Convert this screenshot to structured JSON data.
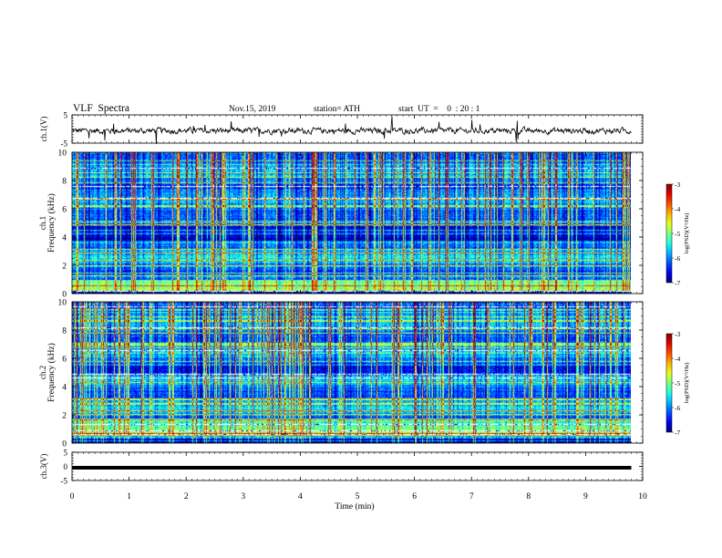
{
  "header": {
    "title": "VLF  Spectra",
    "date": "Nov.15, 2019",
    "station": "station= ATH",
    "start": "start  UT  =    0  : 20 : 1"
  },
  "chart_data": [
    {
      "type": "line",
      "panel": "ch1-waveform",
      "ylabel": "ch.1(V)",
      "ylim": [
        -5,
        5
      ],
      "xlim": [
        0,
        10
      ],
      "yticks": [
        "5",
        "-5"
      ]
    },
    {
      "type": "heatmap",
      "panel": "ch1-spectrogram",
      "ylabel_top": "ch.1",
      "ylabel": "Frequency (kHz)",
      "ylim": [
        0,
        10
      ],
      "xlim": [
        0,
        9.8
      ],
      "yticks": [
        "0",
        "2",
        "4",
        "6",
        "8",
        "10"
      ],
      "colorbar": {
        "label": "log(PSD)(V²/Hz)",
        "ticks": [
          "-3",
          "-4",
          "-5",
          "-6",
          "-7"
        ],
        "range": [
          -7,
          -3
        ]
      }
    },
    {
      "type": "heatmap",
      "panel": "ch2-spectrogram",
      "ylabel_top": "ch.2",
      "ylabel": "Frequency (kHz)",
      "ylim": [
        0,
        10
      ],
      "xlim": [
        0,
        9.8
      ],
      "yticks": [
        "0",
        "2",
        "4",
        "6",
        "8",
        "10"
      ],
      "colorbar": {
        "label": "log(PSD)(V²/Hz)",
        "ticks": [
          "-3",
          "-4",
          "-5",
          "-6",
          "-7"
        ],
        "range": [
          -7,
          -3
        ]
      }
    },
    {
      "type": "line",
      "panel": "ch3-waveform",
      "ylabel": "ch.3(V)",
      "ylim": [
        -5,
        5
      ],
      "xlim": [
        0,
        10
      ],
      "yticks": [
        "5",
        "0",
        "-5"
      ],
      "x": [
        0,
        9.8
      ],
      "y": [
        -0.5,
        -0.5
      ],
      "xlabel": "Time  (min)",
      "xticks": [
        "0",
        "1",
        "2",
        "3",
        "4",
        "5",
        "6",
        "7",
        "8",
        "9",
        "10"
      ]
    }
  ]
}
